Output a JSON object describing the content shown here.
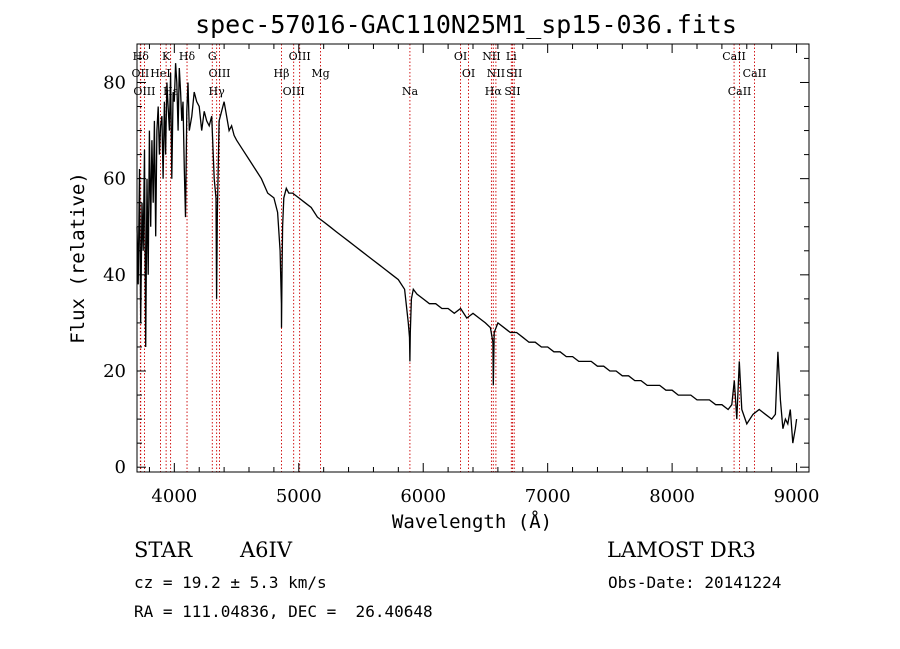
{
  "chart_data": {
    "type": "line",
    "title": "spec-57016-GAC110N25M1_sp15-036.fits",
    "xlabel": "Wavelength (Å)",
    "ylabel": "Flux (relative)",
    "xlim": [
      3700,
      9100
    ],
    "ylim": [
      -1,
      88
    ],
    "x_ticks": [
      4000,
      5000,
      6000,
      7000,
      8000,
      9000
    ],
    "x_tick_labels": [
      "4000",
      "5000",
      "6000",
      "7000",
      "8000",
      "9000"
    ],
    "y_ticks": [
      0,
      20,
      40,
      60,
      80
    ],
    "y_tick_labels": [
      "0",
      "20",
      "40",
      "60",
      "80"
    ],
    "grid": false,
    "series": [
      {
        "name": "flux",
        "x": [
          3700,
          3710,
          3720,
          3730,
          3740,
          3750,
          3760,
          3770,
          3780,
          3790,
          3800,
          3810,
          3820,
          3830,
          3840,
          3850,
          3860,
          3870,
          3880,
          3890,
          3900,
          3910,
          3920,
          3930,
          3940,
          3950,
          3960,
          3970,
          3980,
          3990,
          4000,
          4010,
          4020,
          4030,
          4040,
          4050,
          4060,
          4070,
          4080,
          4090,
          4100,
          4110,
          4120,
          4140,
          4160,
          4180,
          4200,
          4220,
          4240,
          4260,
          4280,
          4300,
          4320,
          4335,
          4340,
          4345,
          4360,
          4380,
          4400,
          4420,
          4440,
          4460,
          4480,
          4500,
          4550,
          4600,
          4650,
          4700,
          4750,
          4800,
          4830,
          4850,
          4860,
          4861,
          4865,
          4870,
          4880,
          4900,
          4920,
          4950,
          5000,
          5050,
          5100,
          5150,
          5200,
          5250,
          5300,
          5350,
          5400,
          5450,
          5500,
          5550,
          5600,
          5650,
          5700,
          5750,
          5800,
          5850,
          5880,
          5890,
          5893,
          5896,
          5905,
          5920,
          5950,
          6000,
          6050,
          6100,
          6150,
          6200,
          6250,
          6300,
          6350,
          6400,
          6450,
          6500,
          6540,
          6560,
          6563,
          6566,
          6570,
          6600,
          6650,
          6700,
          6750,
          6800,
          6850,
          6900,
          6950,
          7000,
          7050,
          7100,
          7150,
          7200,
          7250,
          7300,
          7350,
          7400,
          7450,
          7500,
          7550,
          7600,
          7650,
          7700,
          7750,
          7800,
          7850,
          7900,
          7950,
          8000,
          8050,
          8100,
          8150,
          8200,
          8250,
          8300,
          8350,
          8400,
          8450,
          8480,
          8500,
          8520,
          8540,
          8560,
          8600,
          8650,
          8700,
          8750,
          8800,
          8830,
          8850,
          8870,
          8890,
          8910,
          8930,
          8950,
          8970,
          8990,
          9000
        ],
        "y": [
          50,
          38,
          62,
          30,
          55,
          45,
          66,
          25,
          60,
          40,
          70,
          50,
          68,
          55,
          72,
          48,
          70,
          75,
          65,
          71,
          73,
          60,
          76,
          65,
          80,
          75,
          70,
          82,
          60,
          78,
          76,
          84,
          80,
          70,
          83,
          78,
          72,
          76,
          62,
          52,
          74,
          80,
          70,
          73,
          78,
          76,
          75,
          70,
          74,
          72,
          71,
          73,
          60,
          56,
          35,
          52,
          72,
          74,
          76,
          73,
          70,
          71,
          69,
          68,
          66,
          64,
          62,
          60,
          57,
          56,
          53,
          45,
          34,
          29,
          40,
          50,
          56,
          58,
          57,
          57,
          56,
          55,
          54,
          52,
          51,
          50,
          49,
          48,
          47,
          46,
          45,
          44,
          43,
          42,
          41,
          40,
          39,
          37,
          30,
          27,
          22,
          28,
          35,
          37,
          36,
          35,
          34,
          34,
          33,
          33,
          32,
          33,
          31,
          32,
          31,
          30,
          29,
          26,
          17,
          22,
          28,
          30,
          29,
          28,
          28,
          27,
          26,
          26,
          25,
          25,
          24,
          24,
          23,
          23,
          22,
          22,
          22,
          21,
          21,
          20,
          20,
          19,
          19,
          18,
          18,
          17,
          17,
          17,
          16,
          16,
          15,
          15,
          15,
          14,
          14,
          14,
          13,
          13,
          12,
          13,
          18,
          10,
          22,
          12,
          9,
          11,
          12,
          11,
          10,
          11,
          24,
          14,
          8,
          10,
          9,
          12,
          5,
          8,
          10
        ]
      }
    ],
    "lines": [
      {
        "label": "Hδ",
        "x": 3730
      },
      {
        "label": "OII",
        "x": 3727
      },
      {
        "label": "OIII",
        "x": 3760
      },
      {
        "label": "K",
        "x": 3934
      },
      {
        "label": "HeI",
        "x": 3889
      },
      {
        "label": "Hε",
        "x": 3970
      },
      {
        "label": "Hδ",
        "x": 4102
      },
      {
        "label": "OIII",
        "x": 4363
      },
      {
        "label": "Hγ",
        "x": 4340
      },
      {
        "label": "G",
        "x": 4305
      },
      {
        "label": "Hβ",
        "x": 4861
      },
      {
        "label": "OIII",
        "x": 4959
      },
      {
        "label": "OIII",
        "x": 5007
      },
      {
        "label": "Mg",
        "x": 5175
      },
      {
        "label": "Na",
        "x": 5893
      },
      {
        "label": "OI",
        "x": 6300
      },
      {
        "label": "OI",
        "x": 6364
      },
      {
        "label": "Hα",
        "x": 6563
      },
      {
        "label": "NII",
        "x": 6548
      },
      {
        "label": "NII",
        "x": 6584
      },
      {
        "label": "SII",
        "x": 6717
      },
      {
        "label": "Li",
        "x": 6708
      },
      {
        "label": "SII",
        "x": 6731
      },
      {
        "label": "CaII",
        "x": 8542
      },
      {
        "label": "CaII",
        "x": 8498
      },
      {
        "label": "CaII",
        "x": 8662
      }
    ]
  },
  "info": {
    "object_class": "STAR",
    "subclass": "A6IV",
    "survey": "LAMOST DR3",
    "redshift": "cz = 19.2 ± 5.3 km/s",
    "obs_date": "Obs-Date: 20141224",
    "coords": "RA = 111.04836, DEC =  26.40648"
  },
  "colors": {
    "spectrum": "#000000",
    "line_markers": "#cc0000",
    "axes": "#000000"
  }
}
